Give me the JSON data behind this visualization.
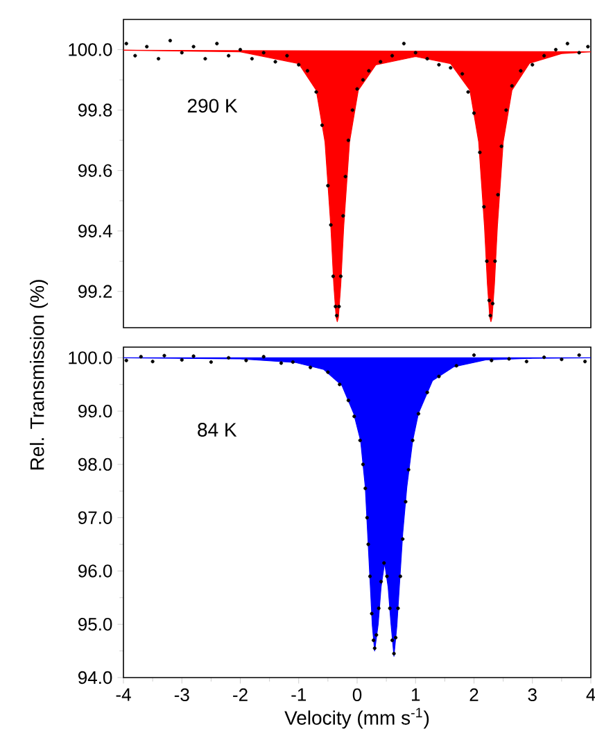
{
  "chart_data": [
    {
      "type": "line",
      "ylabel": "Rel. Transmission (%)",
      "annotations": [
        "290 K"
      ],
      "xlim": [
        -4,
        4
      ],
      "ylim": [
        99.08,
        100.1
      ],
      "yticks": [
        99.2,
        99.4,
        99.6,
        99.8,
        {
          "value": 100.0,
          "label": "100.0"
        }
      ],
      "tick_labels": "y",
      "series": [
        {
          "type": "area",
          "color": "#ff0000",
          "x": [
            -4,
            -2,
            -1,
            -0.7,
            -0.55,
            -0.45,
            -0.4,
            -0.36,
            -0.34,
            -0.32,
            -0.28,
            -0.23,
            -0.13,
            0.02,
            0.32,
            1.0,
            1.6,
            1.93,
            2.08,
            2.18,
            2.23,
            2.27,
            2.29,
            2.31,
            2.35,
            2.4,
            2.5,
            2.65,
            2.95,
            3.5,
            4
          ],
          "values": [
            99.998,
            99.993,
            99.954,
            99.866,
            99.695,
            99.414,
            99.223,
            99.115,
            99.1,
            99.115,
            99.223,
            99.414,
            99.695,
            99.866,
            99.95,
            99.977,
            99.954,
            99.866,
            99.695,
            99.414,
            99.223,
            99.115,
            99.1,
            99.115,
            99.223,
            99.414,
            99.695,
            99.866,
            99.955,
            99.987,
            99.993
          ]
        },
        {
          "type": "scatter",
          "color": "#000000",
          "marker": "circle",
          "x": [
            -3.95,
            -3.8,
            -3.6,
            -3.4,
            -3.2,
            -3.0,
            -2.8,
            -2.6,
            -2.4,
            -2.2,
            -2.0,
            -1.8,
            -1.6,
            -1.4,
            -1.2,
            -1.0,
            -0.85,
            -0.7,
            -0.6,
            -0.5,
            -0.45,
            -0.41,
            -0.37,
            -0.35,
            -0.31,
            -0.28,
            -0.24,
            -0.2,
            -0.15,
            -0.08,
            0.0,
            0.1,
            0.2,
            0.4,
            0.6,
            0.8,
            1.0,
            1.2,
            1.4,
            1.6,
            1.8,
            1.9,
            2.0,
            2.1,
            2.17,
            2.22,
            2.26,
            2.28,
            2.32,
            2.36,
            2.41,
            2.47,
            2.55,
            2.65,
            2.8,
            3.0,
            3.2,
            3.4,
            3.6,
            3.8,
            3.95
          ],
          "values": [
            100.02,
            99.98,
            100.01,
            99.97,
            100.03,
            99.99,
            100.01,
            99.97,
            100.02,
            99.98,
            100.0,
            99.97,
            99.99,
            99.96,
            99.98,
            99.95,
            99.93,
            99.86,
            99.75,
            99.55,
            99.42,
            99.25,
            99.15,
            99.12,
            99.15,
            99.25,
            99.45,
            99.58,
            99.7,
            99.8,
            99.87,
            99.9,
            99.93,
            99.96,
            99.98,
            100.02,
            99.99,
            99.97,
            99.95,
            99.94,
            99.92,
            99.86,
            99.79,
            99.66,
            99.48,
            99.3,
            99.17,
            99.12,
            99.16,
            99.3,
            99.52,
            99.68,
            99.8,
            99.88,
            99.93,
            99.95,
            99.98,
            100.0,
            100.02,
            99.99,
            100.01
          ]
        }
      ]
    },
    {
      "type": "line",
      "xlabel": "Velocity (mm s$^{-1}$)",
      "annotations": [
        "84 K"
      ],
      "xlim": [
        -4,
        4
      ],
      "ylim": [
        94.0,
        100.2
      ],
      "xticks": [
        -4,
        -3,
        -2,
        -1,
        0,
        1,
        2,
        3,
        4
      ],
      "yticks": [
        {
          "value": 94.0,
          "label": "94.0"
        },
        {
          "value": 95.0,
          "label": "95.0"
        },
        {
          "value": 96.0,
          "label": "96.0"
        },
        {
          "value": 97.0,
          "label": "97.0"
        },
        {
          "value": 98.0,
          "label": "98.0"
        },
        {
          "value": 99.0,
          "label": "99.0"
        },
        {
          "value": 100.0,
          "label": "100.0"
        }
      ],
      "series": [
        {
          "type": "area",
          "color": "#0000ff",
          "x": [
            -4,
            -2,
            -1.05,
            -0.57,
            -0.26,
            -0.06,
            0.06,
            0.14,
            0.18,
            0.22,
            0.26,
            0.3,
            0.36,
            0.41,
            0.47,
            0.53,
            0.58,
            0.63,
            0.68,
            0.73,
            0.78,
            0.85,
            0.95,
            1.05,
            1.29,
            1.65,
            2.2,
            3,
            4
          ],
          "values": [
            100.0,
            99.98,
            99.91,
            99.78,
            99.48,
            98.96,
            98.44,
            97.57,
            96.7,
            95.84,
            94.97,
            94.5,
            95.0,
            95.7,
            96.15,
            95.7,
            95.0,
            94.4,
            94.97,
            95.84,
            96.7,
            97.57,
            98.44,
            98.96,
            99.57,
            99.83,
            99.96,
            99.99,
            100.0
          ]
        },
        {
          "type": "scatter",
          "color": "#000000",
          "marker": "circle",
          "x": [
            -3.95,
            -3.7,
            -3.5,
            -3.3,
            -3.0,
            -2.8,
            -2.5,
            -2.2,
            -1.9,
            -1.6,
            -1.3,
            -1.1,
            -0.8,
            -0.5,
            -0.3,
            -0.15,
            -0.05,
            0.05,
            0.1,
            0.14,
            0.17,
            0.19,
            0.22,
            0.25,
            0.28,
            0.3,
            0.33,
            0.37,
            0.41,
            0.46,
            0.51,
            0.56,
            0.6,
            0.63,
            0.66,
            0.7,
            0.74,
            0.78,
            0.83,
            0.88,
            0.95,
            1.05,
            1.2,
            1.4,
            1.7,
            2.0,
            2.3,
            2.6,
            2.9,
            3.2,
            3.5,
            3.8,
            3.9
          ],
          "values": [
            99.95,
            100.02,
            99.93,
            100.04,
            99.96,
            100.03,
            99.92,
            100.0,
            99.95,
            100.02,
            99.9,
            99.92,
            99.82,
            99.73,
            99.5,
            99.2,
            98.9,
            98.45,
            98.0,
            97.55,
            97.0,
            96.5,
            95.9,
            95.2,
            94.7,
            94.55,
            94.8,
            95.3,
            95.8,
            96.15,
            95.9,
            95.3,
            94.7,
            94.45,
            94.75,
            95.3,
            95.9,
            96.6,
            97.3,
            97.9,
            98.45,
            98.95,
            99.35,
            99.65,
            99.85,
            100.05,
            99.95,
            99.98,
            99.93,
            100.01,
            99.97,
            100.05,
            99.93
          ]
        }
      ]
    }
  ]
}
